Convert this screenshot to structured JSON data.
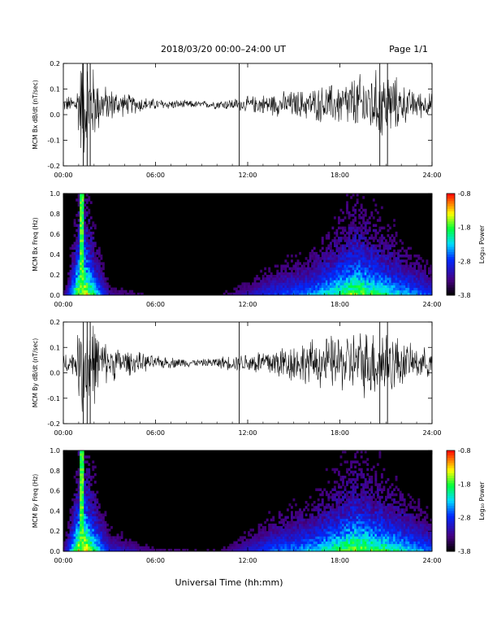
{
  "header": {
    "title": "2018/03/20  00:00–24:00 UT",
    "page": "Page 1/1"
  },
  "xlabel": "Universal Time (hh:mm)",
  "chart_data": [
    {
      "type": "line",
      "ylabel": "MCM Bx dB/dt (nT/sec)",
      "xlim": [
        0,
        24
      ],
      "ylim": [
        -0.2,
        0.2
      ],
      "x_ticks": [
        "00:00",
        "06:00",
        "12:00",
        "18:00",
        "24:00"
      ],
      "y_ticks": [
        "0.2",
        "0.1",
        "0.0",
        "-0.1",
        "-0.2"
      ],
      "baseline": 0.04,
      "envelope": [
        {
          "x": 0.0,
          "amp": 0.03
        },
        {
          "x": 0.8,
          "amp": 0.05
        },
        {
          "x": 1.2,
          "amp": 0.25
        },
        {
          "x": 1.8,
          "amp": 0.2
        },
        {
          "x": 2.5,
          "amp": 0.09
        },
        {
          "x": 4.0,
          "amp": 0.05
        },
        {
          "x": 6.0,
          "amp": 0.025
        },
        {
          "x": 9.0,
          "amp": 0.015
        },
        {
          "x": 11.5,
          "amp": 0.03
        },
        {
          "x": 13.5,
          "amp": 0.05
        },
        {
          "x": 16.0,
          "amp": 0.07
        },
        {
          "x": 18.0,
          "amp": 0.1
        },
        {
          "x": 19.5,
          "amp": 0.14
        },
        {
          "x": 21.0,
          "amp": 0.16
        },
        {
          "x": 22.5,
          "amp": 0.07
        },
        {
          "x": 24.0,
          "amp": 0.05
        }
      ]
    },
    {
      "type": "heatmap",
      "ylabel": "MCM Bx Freq (Hz)",
      "xlim": [
        0,
        24
      ],
      "ylim": [
        0,
        1.0
      ],
      "x_ticks": [
        "00:00",
        "06:00",
        "12:00",
        "18:00",
        "24:00"
      ],
      "y_ticks": [
        "1.0",
        "0.8",
        "0.6",
        "0.4",
        "0.2",
        "0.0"
      ],
      "colorbar": {
        "label": "Log₁₀ Power",
        "range": [
          -3.8,
          -0.8
        ],
        "ticks": [
          "-0.8",
          "-1.8",
          "-2.8",
          "-3.8"
        ]
      },
      "activity": [
        {
          "x": 0.0,
          "level": 0.1
        },
        {
          "x": 1.2,
          "level": 0.95
        },
        {
          "x": 2.0,
          "level": 0.6
        },
        {
          "x": 3.0,
          "level": 0.2
        },
        {
          "x": 6.0,
          "level": 0.1
        },
        {
          "x": 10.0,
          "level": 0.1
        },
        {
          "x": 13.5,
          "level": 0.35
        },
        {
          "x": 16.0,
          "level": 0.45
        },
        {
          "x": 19.0,
          "level": 0.75
        },
        {
          "x": 21.0,
          "level": 0.6
        },
        {
          "x": 24.0,
          "level": 0.35
        }
      ]
    },
    {
      "type": "line",
      "ylabel": "MCM By dB/dt (nT/sec)",
      "xlim": [
        0,
        24
      ],
      "ylim": [
        -0.2,
        0.2
      ],
      "x_ticks": [
        "00:00",
        "06:00",
        "12:00",
        "18:00",
        "24:00"
      ],
      "y_ticks": [
        "0.2",
        "0.1",
        "0.0",
        "-0.1",
        "-0.2"
      ],
      "baseline": 0.04,
      "envelope": [
        {
          "x": 0.0,
          "amp": 0.04
        },
        {
          "x": 0.8,
          "amp": 0.06
        },
        {
          "x": 1.2,
          "amp": 0.25
        },
        {
          "x": 1.8,
          "amp": 0.22
        },
        {
          "x": 2.5,
          "amp": 0.1
        },
        {
          "x": 4.0,
          "amp": 0.06
        },
        {
          "x": 6.0,
          "amp": 0.03
        },
        {
          "x": 9.0,
          "amp": 0.015
        },
        {
          "x": 11.5,
          "amp": 0.04
        },
        {
          "x": 14.0,
          "amp": 0.08
        },
        {
          "x": 16.0,
          "amp": 0.1
        },
        {
          "x": 18.0,
          "amp": 0.13
        },
        {
          "x": 19.5,
          "amp": 0.15
        },
        {
          "x": 21.0,
          "amp": 0.17
        },
        {
          "x": 22.5,
          "amp": 0.08
        },
        {
          "x": 24.0,
          "amp": 0.06
        }
      ]
    },
    {
      "type": "heatmap",
      "ylabel": "MCM By Freq (Hz)",
      "xlim": [
        0,
        24
      ],
      "ylim": [
        0,
        1.0
      ],
      "x_ticks": [
        "00:00",
        "06:00",
        "12:00",
        "18:00",
        "24:00"
      ],
      "y_ticks": [
        "1.0",
        "0.8",
        "0.6",
        "0.4",
        "0.2",
        "0.0"
      ],
      "colorbar": {
        "label": "Log₁₀ Power",
        "range": [
          -3.8,
          -0.8
        ],
        "ticks": [
          "-0.8",
          "-1.8",
          "-2.8",
          "-3.8"
        ]
      },
      "activity": [
        {
          "x": 0.0,
          "level": 0.15
        },
        {
          "x": 1.2,
          "level": 0.95
        },
        {
          "x": 2.0,
          "level": 0.65
        },
        {
          "x": 3.0,
          "level": 0.3
        },
        {
          "x": 6.0,
          "level": 0.15
        },
        {
          "x": 10.0,
          "level": 0.12
        },
        {
          "x": 13.5,
          "level": 0.4
        },
        {
          "x": 16.0,
          "level": 0.5
        },
        {
          "x": 19.0,
          "level": 0.75
        },
        {
          "x": 21.0,
          "level": 0.65
        },
        {
          "x": 24.0,
          "level": 0.4
        }
      ]
    }
  ]
}
